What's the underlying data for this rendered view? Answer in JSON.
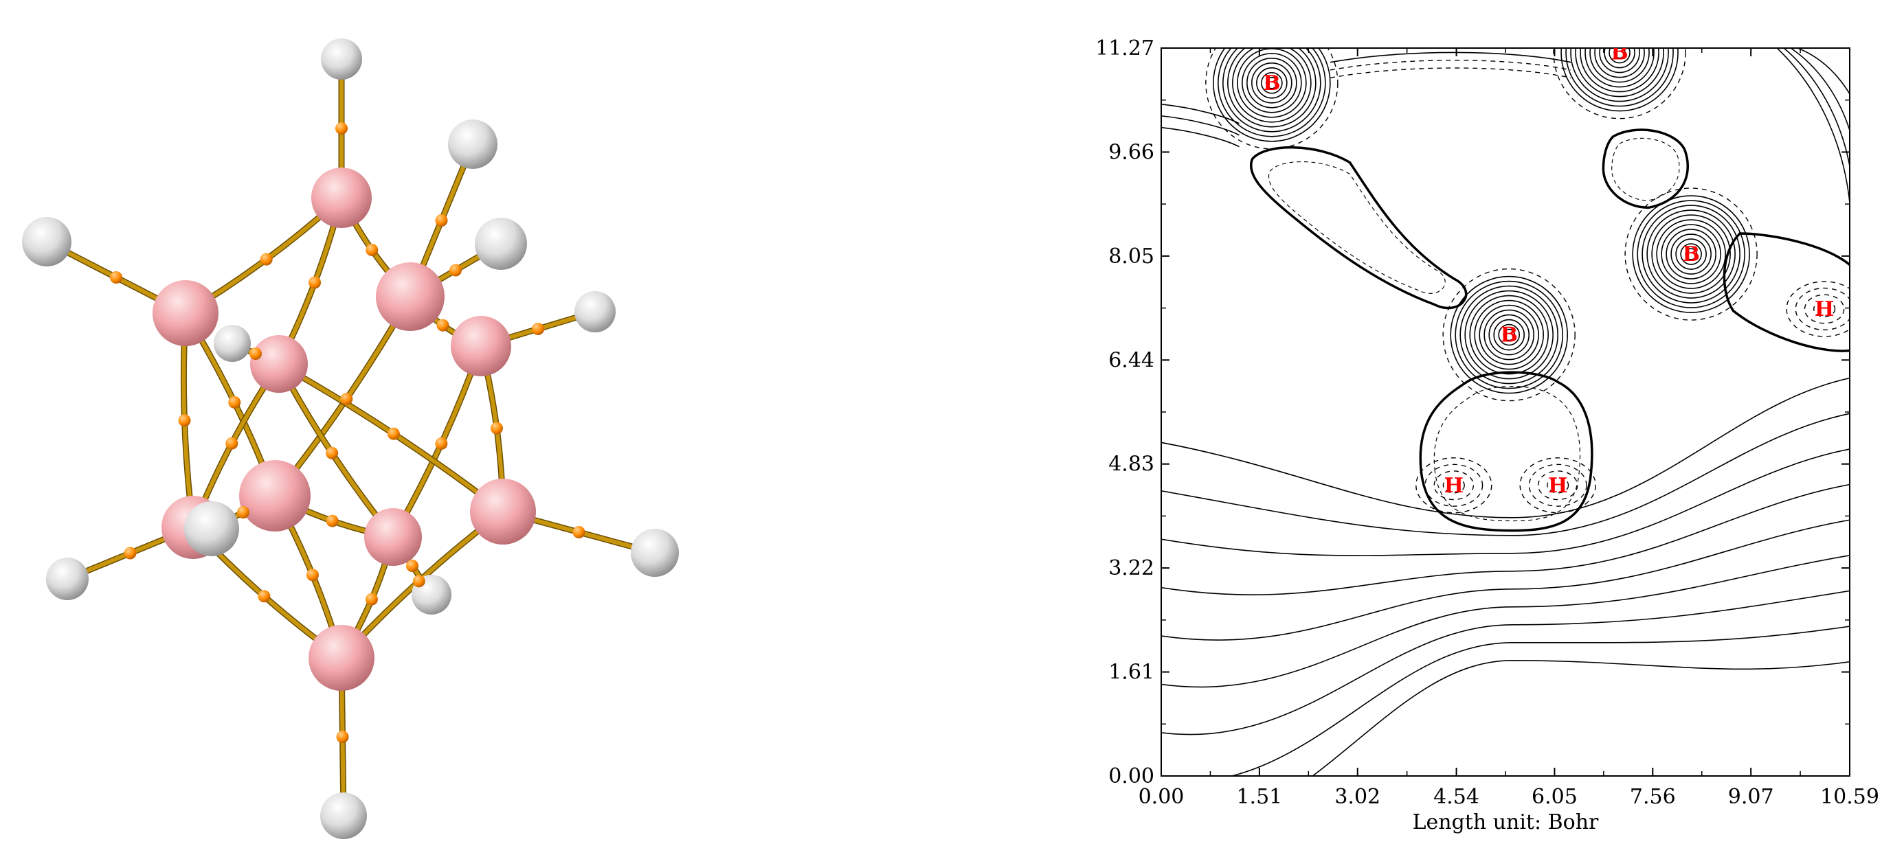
{
  "molecule": {
    "boron_color": "#f4a9ad",
    "hydrogen_color": "#d6d6d6",
    "bond_color": "#c8960c",
    "critical_point_color": "#ff8a00"
  },
  "contour_plot": {
    "x_ticks": [
      "0.00",
      "1.51",
      "3.02",
      "4.54",
      "6.05",
      "7.56",
      "9.07",
      "10.59"
    ],
    "y_ticks": [
      "0.00",
      "1.61",
      "3.22",
      "4.83",
      "6.44",
      "8.05",
      "9.66",
      "11.27"
    ],
    "xlabel": "Length unit: Bohr",
    "xlim": [
      0,
      10.59
    ],
    "ylim": [
      0,
      11.27
    ],
    "atoms": [
      {
        "label": "B",
        "x": 1.7,
        "y": 10.73
      },
      {
        "label": "B",
        "x": 7.05,
        "y": 11.2
      },
      {
        "label": "B",
        "x": 8.15,
        "y": 8.08
      },
      {
        "label": "B",
        "x": 5.35,
        "y": 6.83
      },
      {
        "label": "H",
        "x": 10.2,
        "y": 7.23
      },
      {
        "label": "H",
        "x": 4.5,
        "y": 4.5
      },
      {
        "label": "H",
        "x": 6.1,
        "y": 4.5
      }
    ]
  }
}
